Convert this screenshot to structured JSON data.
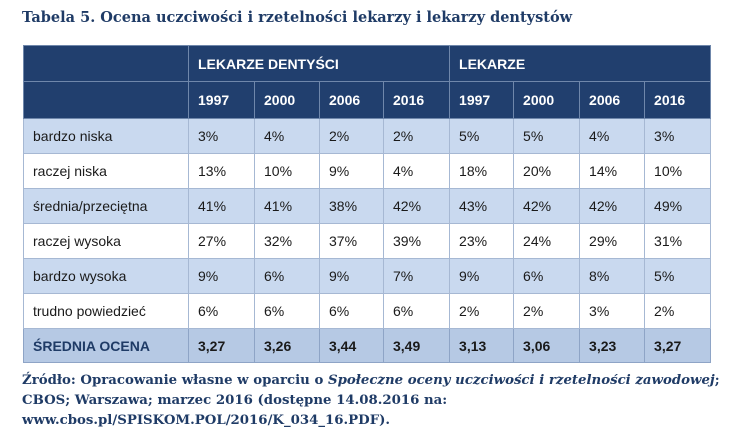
{
  "caption": "Tabela 5. Ocena uczciwości i rzetelności lekarzy i lekarzy dentystów",
  "table": {
    "groups": [
      "LEKARZE DENTYŚCI",
      "LEKARZE"
    ],
    "years": [
      "1997",
      "2000",
      "2006",
      "2016",
      "1997",
      "2000",
      "2006",
      "2016"
    ],
    "rows": [
      {
        "label": "bardzo niska",
        "values": [
          "3%",
          "4%",
          "2%",
          "2%",
          "5%",
          "5%",
          "4%",
          "3%"
        ]
      },
      {
        "label": "raczej niska",
        "values": [
          "13%",
          "10%",
          "9%",
          "4%",
          "18%",
          "20%",
          "14%",
          "10%"
        ]
      },
      {
        "label": "średnia/przeciętna",
        "values": [
          "41%",
          "41%",
          "38%",
          "42%",
          "43%",
          "42%",
          "42%",
          "49%"
        ]
      },
      {
        "label": "raczej wysoka",
        "values": [
          "27%",
          "32%",
          "37%",
          "39%",
          "23%",
          "24%",
          "29%",
          "31%"
        ]
      },
      {
        "label": "bardzo wysoka",
        "values": [
          "9%",
          "6%",
          "9%",
          "7%",
          "9%",
          "6%",
          "8%",
          "5%"
        ]
      },
      {
        "label": "trudno powiedzieć",
        "values": [
          "6%",
          "6%",
          "6%",
          "6%",
          "2%",
          "2%",
          "3%",
          "2%"
        ]
      }
    ],
    "footer": {
      "label": "ŚREDNIA OCENA",
      "values": [
        "3,27",
        "3,26",
        "3,44",
        "3,49",
        "3,13",
        "3,06",
        "3,23",
        "3,27"
      ]
    }
  },
  "source": {
    "prefix": "Źródło: Opracowanie własne w oparciu o ",
    "title": "Społeczne oceny uczciwości i rzetelności zawodowej",
    "suffix": "; CBOS; Warszawa; marzec 2016 (dostępne 14.08.2016 na: www.cbos.pl/SPISKOM.POL/2016/K_034_16.PDF)."
  },
  "colors": {
    "header_bg": "#213f6e",
    "shaded_row": "#c9d9ef",
    "footer_row": "#b6c9e4",
    "caption_text": "#1f3b66"
  }
}
